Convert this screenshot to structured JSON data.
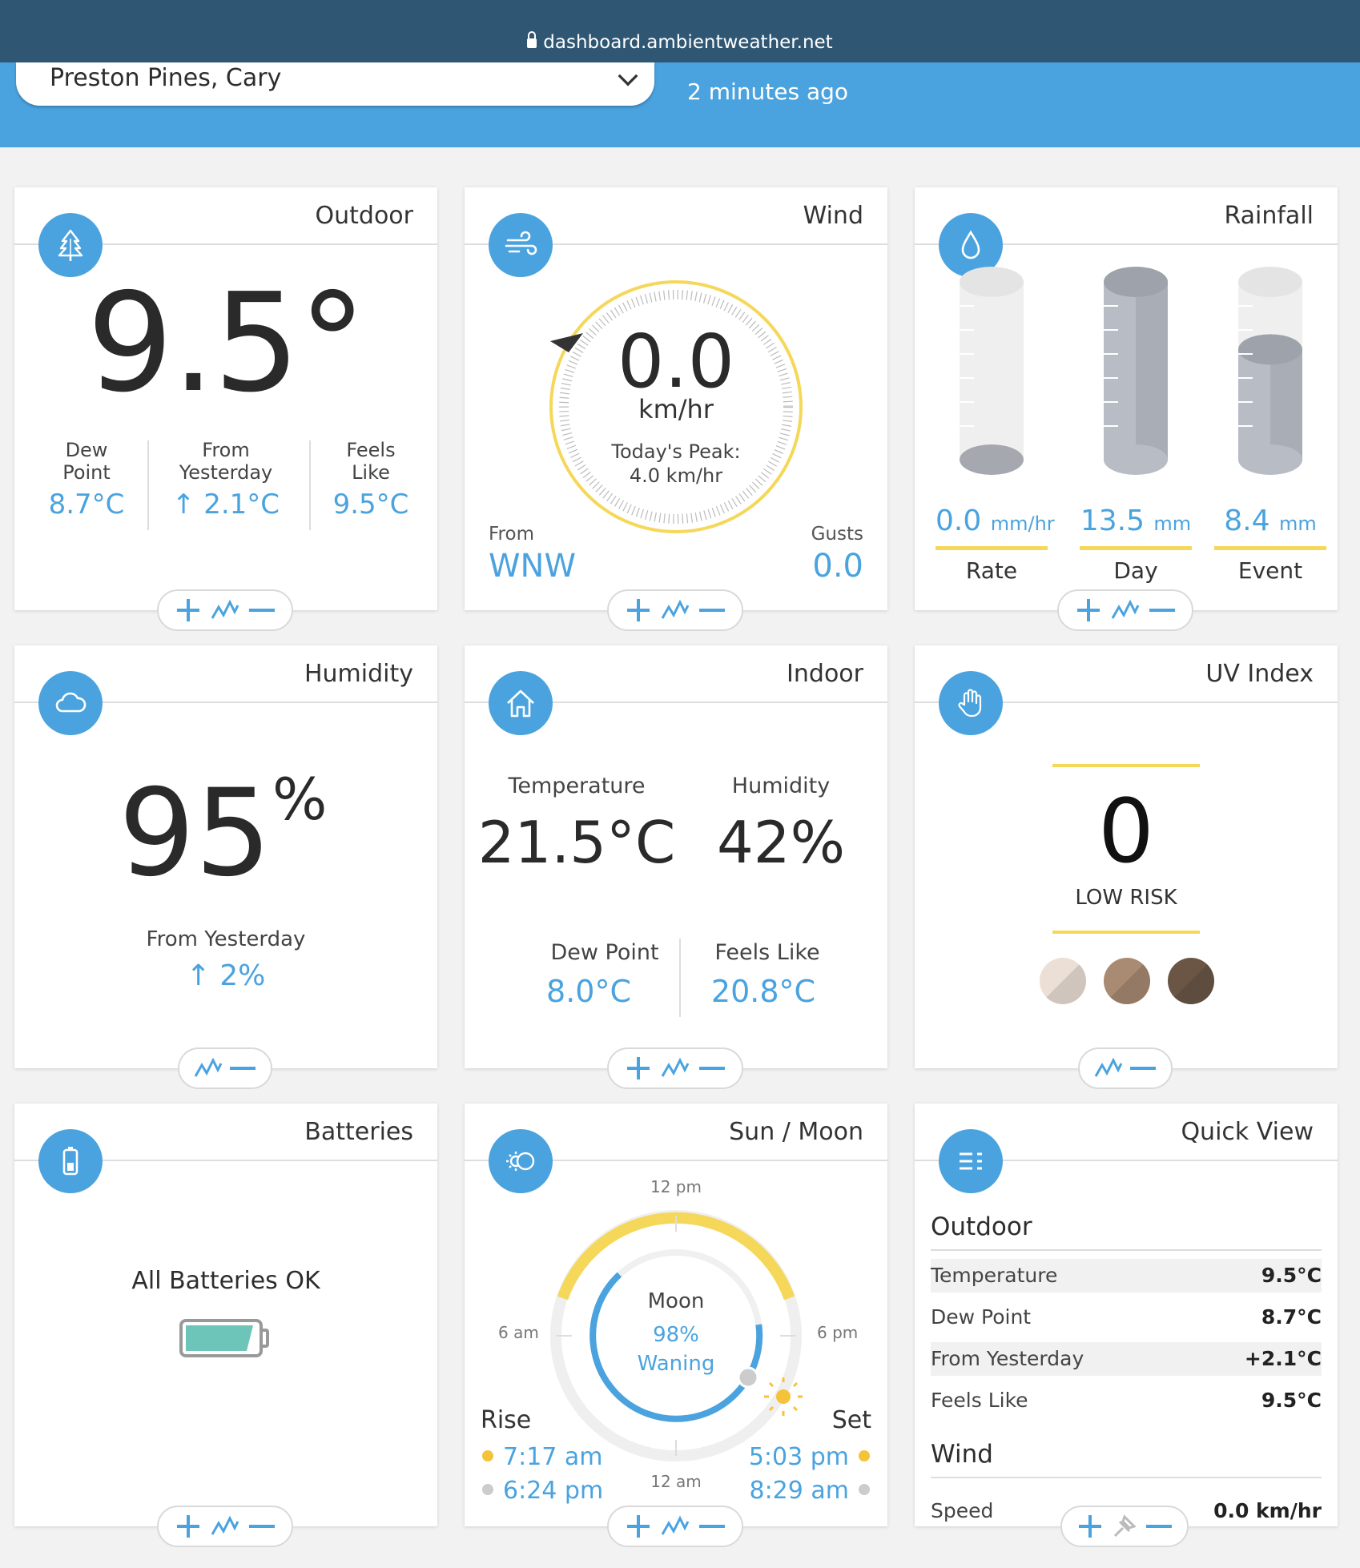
{
  "browser": {
    "url": "dashboard.ambientweather.net"
  },
  "header": {
    "station": "Preston Pines, Cary",
    "updated": "2 minutes ago"
  },
  "outdoor": {
    "title": "Outdoor",
    "temp": "9.5°",
    "dew_label_1": "Dew",
    "dew_label_2": "Point",
    "dew_value": "8.7°C",
    "from_label_1": "From",
    "from_label_2": "Yesterday",
    "from_value": "↑ 2.1°C",
    "feels_label_1": "Feels",
    "feels_label_2": "Like",
    "feels_value": "9.5°C"
  },
  "wind": {
    "title": "Wind",
    "speed": "0.0",
    "unit": "km/hr",
    "peak_label": "Today's Peak:",
    "peak_value": "4.0 km/hr",
    "from_label": "From",
    "from_value": "WNW",
    "gusts_label": "Gusts",
    "gusts_value": "0.0"
  },
  "rainfall": {
    "title": "Rainfall",
    "items": [
      {
        "value": "0.0",
        "unit": "mm/hr",
        "label": "Rate",
        "fill": 0.0
      },
      {
        "value": "13.5",
        "unit": "mm",
        "label": "Day",
        "fill": 1.0
      },
      {
        "value": "8.4",
        "unit": "mm",
        "label": "Event",
        "fill": 0.62
      }
    ]
  },
  "humidity": {
    "title": "Humidity",
    "value": "95",
    "unit": "%",
    "from_label": "From Yesterday",
    "from_value": "↑ 2%"
  },
  "indoor": {
    "title": "Indoor",
    "temp_label": "Temperature",
    "temp_value": "21.5°C",
    "hum_label": "Humidity",
    "hum_value": "42%",
    "dew_label": "Dew Point",
    "dew_value": "8.0°C",
    "feels_label": "Feels Like",
    "feels_value": "20.8°C"
  },
  "uv": {
    "title": "UV Index",
    "value": "0",
    "risk": "LOW RISK",
    "skin_colors": [
      "#ece0d6",
      "#a88b72",
      "#6b5646"
    ]
  },
  "batteries": {
    "title": "Batteries",
    "status": "All Batteries OK"
  },
  "sunmoon": {
    "title": "Sun / Moon",
    "t12pm": "12 pm",
    "t6am": "6 am",
    "t6pm": "6 pm",
    "t12am": "12 am",
    "moon_label": "Moon",
    "moon_pct": "98%",
    "moon_phase": "Waning",
    "rise_label": "Rise",
    "set_label": "Set",
    "sun_rise": "7:17 am",
    "moon_rise": "6:24 pm",
    "sun_set": "5:03 pm",
    "moon_set": "8:29 am"
  },
  "quickview": {
    "title": "Quick View",
    "outdoor_heading": "Outdoor",
    "rows": [
      {
        "label": "Temperature",
        "value": "9.5°C"
      },
      {
        "label": "Dew Point",
        "value": "8.7°C"
      },
      {
        "label": "From Yesterday",
        "value": "+2.1°C"
      },
      {
        "label": "Feels Like",
        "value": "9.5°C"
      }
    ],
    "wind_heading": "Wind",
    "wind_rows": [
      {
        "label": "Speed",
        "value": "0.0 km/hr"
      }
    ]
  },
  "colors": {
    "accent": "#4aa3df",
    "header": "#2f5773",
    "yellow": "#f5d75a"
  }
}
